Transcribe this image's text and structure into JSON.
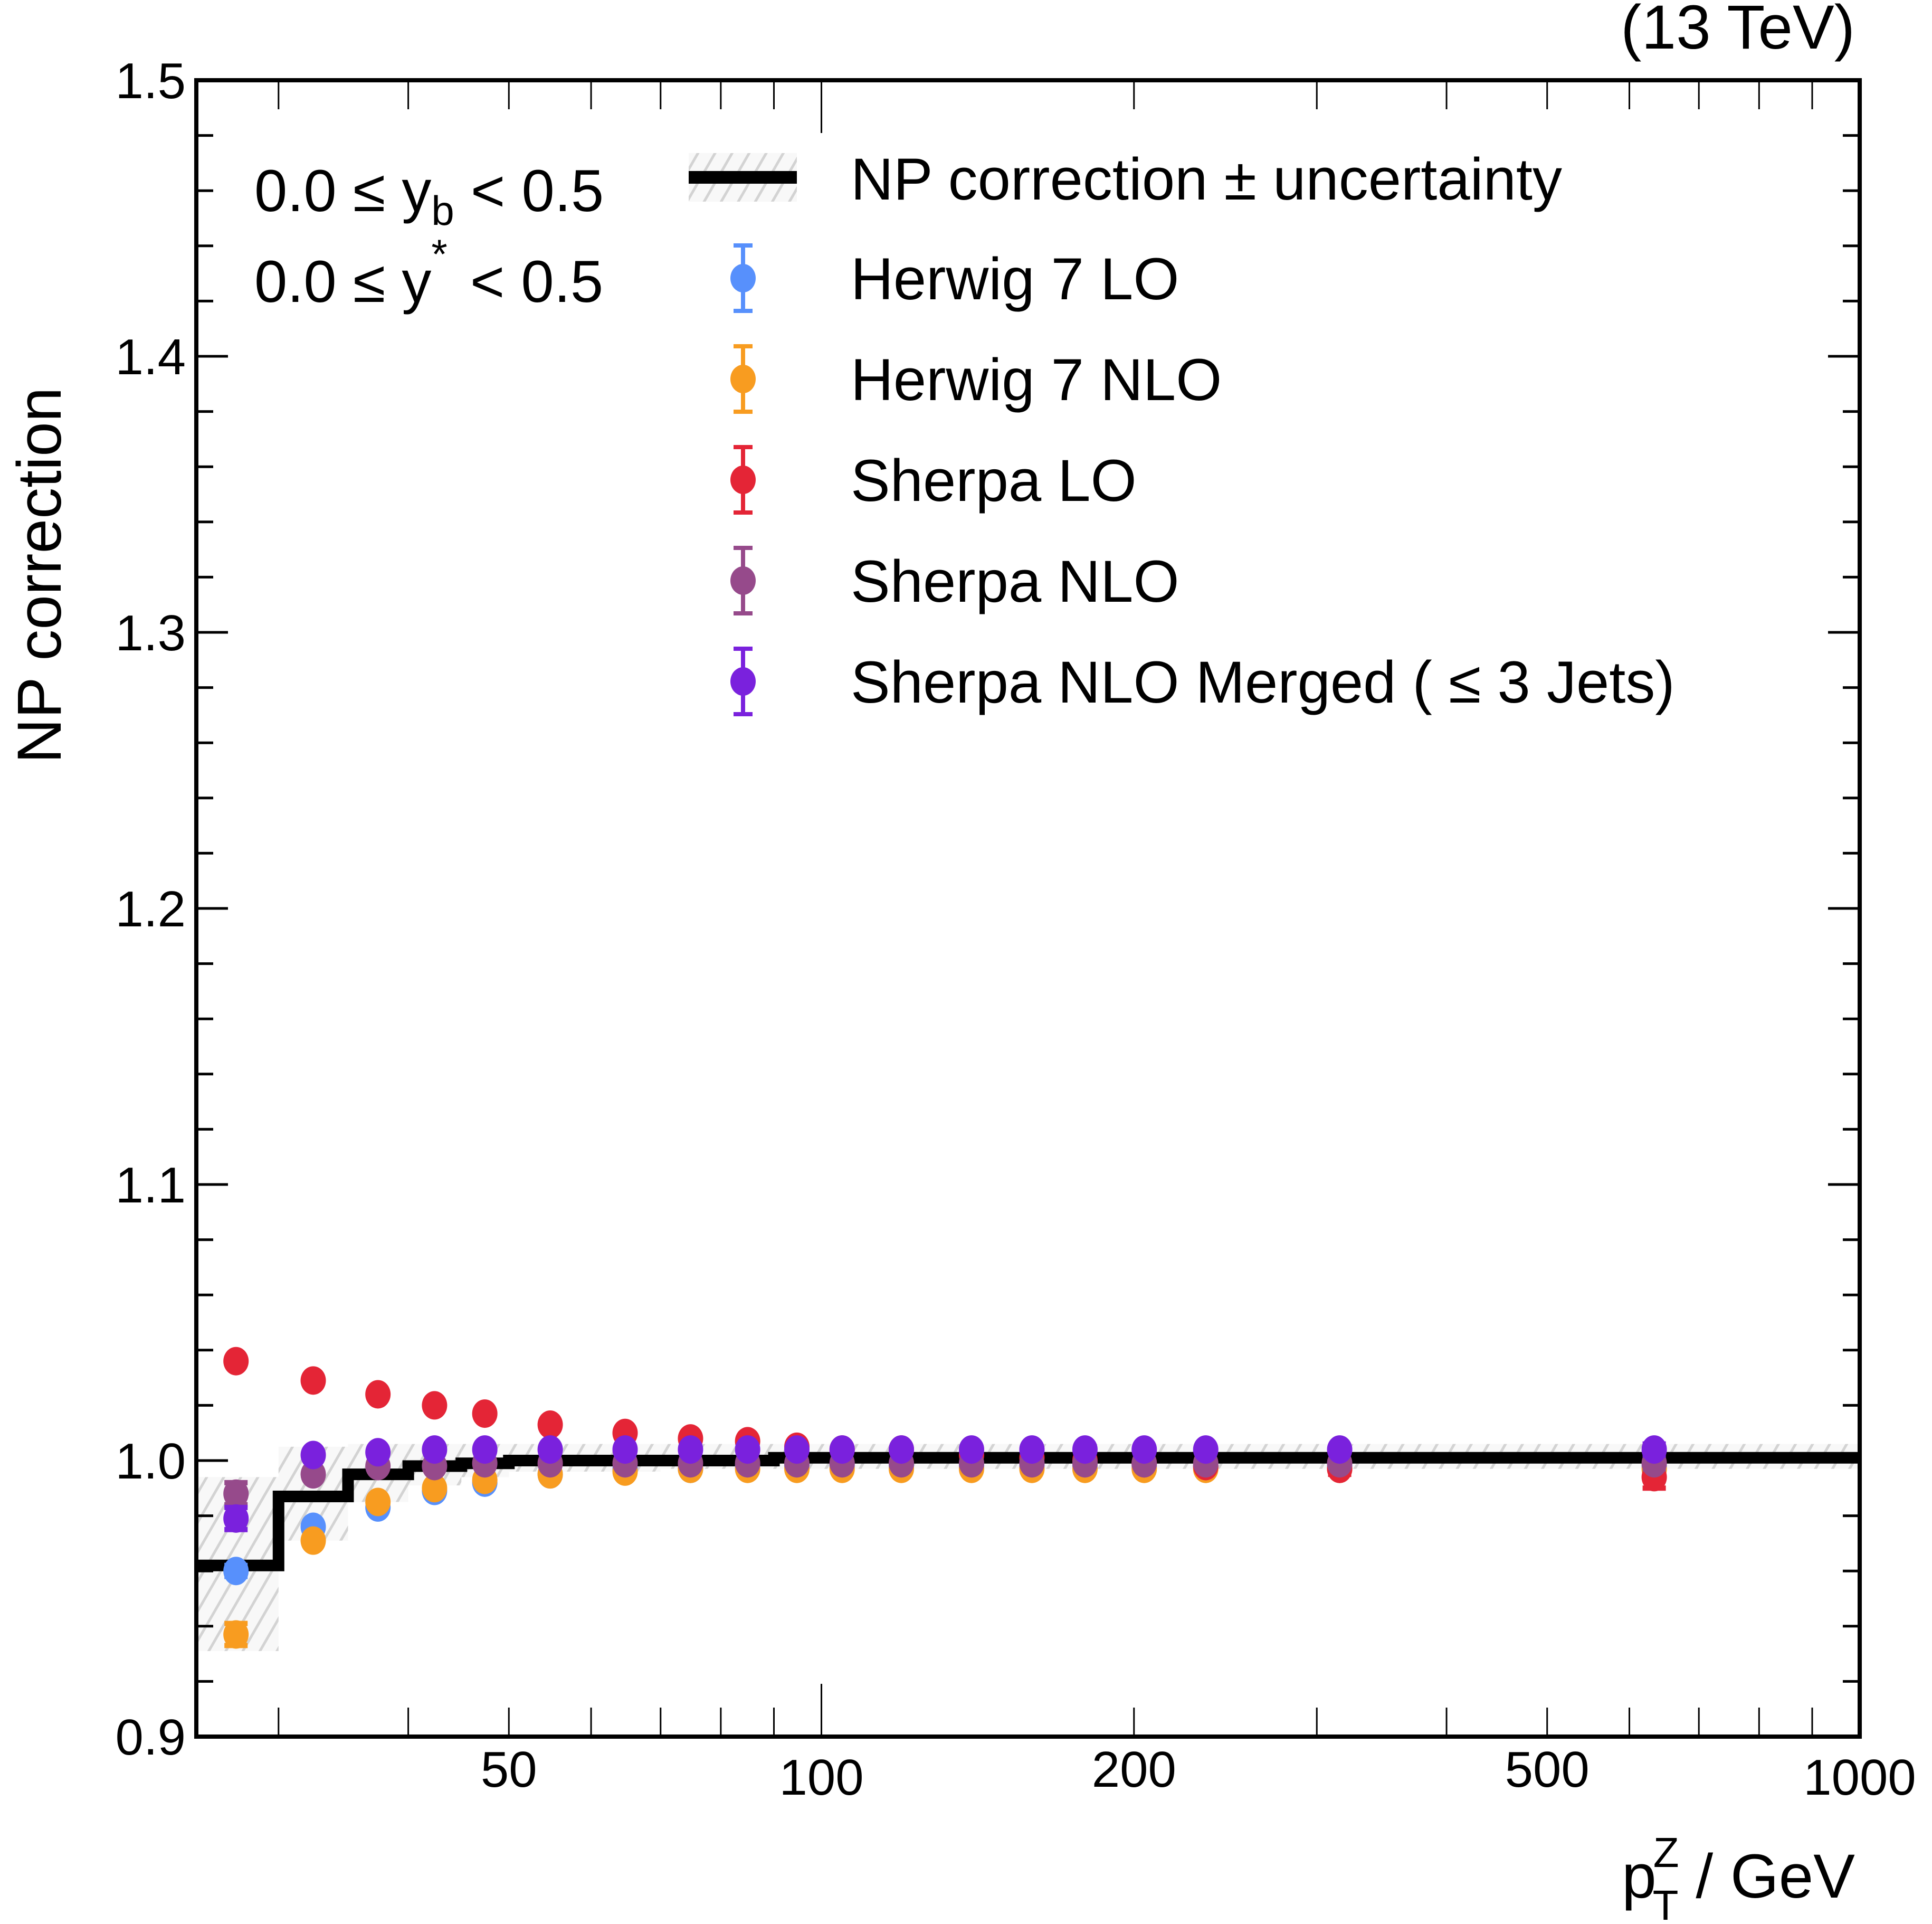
{
  "chart_data": {
    "type": "scatter",
    "title": "",
    "top_right_label": "(13 TeV)",
    "xlabel": {
      "main": "p",
      "sup": "Z",
      "sub": "T",
      "unit": " / GeV"
    },
    "ylabel": "NP correction",
    "xscale": "log",
    "xlim": [
      25,
      1000
    ],
    "ylim": [
      0.9,
      1.5
    ],
    "xticks": [
      50,
      100,
      200,
      500,
      1000
    ],
    "xtick_labels": [
      "50",
      "100",
      "200",
      "500",
      "1000"
    ],
    "yticks": [
      0.9,
      1.0,
      1.1,
      1.2,
      1.3,
      1.4,
      1.5
    ],
    "ytick_labels": [
      "0.9",
      "1.0",
      "1.1",
      "1.2",
      "1.3",
      "1.4",
      "1.5"
    ],
    "grid": false,
    "legend_position": "top-right",
    "annotations": [
      {
        "text_parts": [
          "0.0 ≤ y",
          "b",
          " < 0.5"
        ],
        "kind": "sub"
      },
      {
        "text_parts": [
          "0.0 ≤ y",
          "*",
          " < 0.5"
        ],
        "kind": "sup"
      }
    ],
    "np_correction": {
      "name": "NP correction ± uncertainty",
      "color": "#000000",
      "band_color": "#d3d3d3",
      "bin_edges": [
        25,
        30,
        35,
        40,
        45,
        50,
        60,
        70,
        80,
        90,
        100,
        110,
        130,
        150,
        170,
        190,
        220,
        250,
        400,
        1000
      ],
      "values": [
        0.962,
        0.987,
        0.995,
        0.998,
        0.999,
        1.0,
        1.0,
        1.0,
        1.0,
        1.001,
        1.001,
        1.001,
        1.001,
        1.001,
        1.001,
        1.001,
        1.001,
        1.001,
        1.001
      ],
      "unc_low": [
        0.931,
        0.971,
        0.985,
        0.991,
        0.994,
        0.996,
        0.996,
        0.997,
        0.997,
        0.997,
        0.997,
        0.997,
        0.997,
        0.997,
        0.997,
        0.997,
        0.997,
        0.997,
        0.997
      ],
      "unc_high": [
        0.994,
        1.005,
        1.006,
        1.006,
        1.006,
        1.006,
        1.006,
        1.006,
        1.006,
        1.006,
        1.006,
        1.006,
        1.006,
        1.006,
        1.006,
        1.006,
        1.006,
        1.006,
        1.006
      ]
    },
    "x": [
      27.3,
      32.4,
      37.4,
      42.4,
      47.4,
      54.8,
      64.7,
      74.8,
      84.9,
      94.7,
      104.7,
      119.4,
      139.5,
      159.5,
      179.4,
      204.6,
      234.5,
      315.6,
      634
    ],
    "series": [
      {
        "name": "Herwig 7 LO",
        "color": "#5790fc",
        "values": [
          0.96,
          0.976,
          0.983,
          0.989,
          0.992,
          0.995,
          0.997,
          0.997,
          0.998,
          0.998,
          0.998,
          0.998,
          0.998,
          0.998,
          0.998,
          0.998,
          0.998,
          0.998,
          0.998
        ],
        "errors": [
          0.002,
          0.001,
          0.001,
          0.001,
          0.001,
          0.001,
          0.001,
          0.001,
          0.001,
          0.001,
          0.001,
          0.001,
          0.001,
          0.001,
          0.001,
          0.001,
          0.001,
          0.001,
          0.002
        ]
      },
      {
        "name": "Herwig 7 NLO",
        "color": "#f89c20",
        "values": [
          0.937,
          0.971,
          0.985,
          0.99,
          0.993,
          0.995,
          0.996,
          0.997,
          0.997,
          0.997,
          0.997,
          0.997,
          0.997,
          0.997,
          0.997,
          0.997,
          0.997,
          0.997,
          0.997
        ],
        "errors": [
          0.004,
          0.001,
          0.001,
          0.001,
          0.001,
          0.001,
          0.001,
          0.001,
          0.001,
          0.001,
          0.001,
          0.001,
          0.001,
          0.001,
          0.001,
          0.001,
          0.001,
          0.001,
          0.002
        ]
      },
      {
        "name": "Sherpa LO",
        "color": "#e42536",
        "values": [
          1.036,
          1.029,
          1.024,
          1.02,
          1.017,
          1.013,
          1.01,
          1.008,
          1.007,
          1.005,
          1.004,
          1.004,
          1.002,
          1.001,
          1.0,
          0.999,
          0.998,
          0.997,
          0.994
        ],
        "errors": [
          0.001,
          0.001,
          0.001,
          0.001,
          0.001,
          0.001,
          0.001,
          0.001,
          0.001,
          0.001,
          0.001,
          0.001,
          0.001,
          0.001,
          0.001,
          0.001,
          0.001,
          0.002,
          0.004
        ]
      },
      {
        "name": "Sherpa NLO",
        "color": "#964a8b",
        "values": [
          0.988,
          0.995,
          0.998,
          0.998,
          0.999,
          0.999,
          0.999,
          0.999,
          0.999,
          0.999,
          0.999,
          0.999,
          0.999,
          0.999,
          0.999,
          0.999,
          0.999,
          0.999,
          0.999
        ],
        "errors": [
          0.004,
          0.001,
          0.001,
          0.001,
          0.001,
          0.001,
          0.001,
          0.001,
          0.001,
          0.001,
          0.001,
          0.001,
          0.001,
          0.001,
          0.001,
          0.001,
          0.001,
          0.001,
          0.002
        ]
      },
      {
        "name": "Sherpa NLO Merged ( ≤ 3 Jets)",
        "color": "#7a21dd",
        "values": [
          0.979,
          1.002,
          1.003,
          1.004,
          1.004,
          1.004,
          1.004,
          1.004,
          1.004,
          1.004,
          1.004,
          1.004,
          1.004,
          1.004,
          1.004,
          1.004,
          1.004,
          1.004,
          1.004
        ],
        "errors": [
          0.004,
          0.001,
          0.001,
          0.001,
          0.001,
          0.001,
          0.001,
          0.001,
          0.001,
          0.001,
          0.001,
          0.001,
          0.001,
          0.001,
          0.001,
          0.001,
          0.001,
          0.001,
          0.002
        ]
      }
    ]
  }
}
